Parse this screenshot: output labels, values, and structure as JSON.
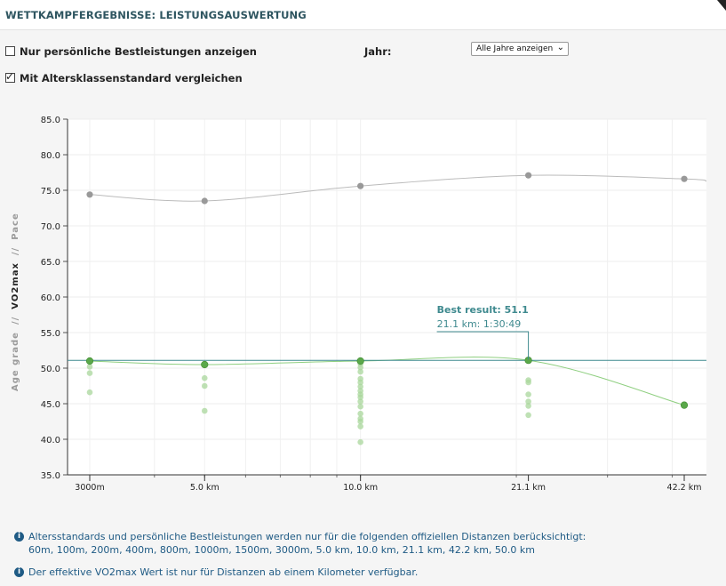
{
  "header": {
    "title": "WETTKAMPFERGEBNISSE: LEISTUNGSAUSWERTUNG"
  },
  "options": {
    "personal_best_label": "Nur persönliche Bestleistungen anzeigen",
    "personal_best_checked": false,
    "age_standard_label": "Mit Altersklassenstandard vergleichen",
    "age_standard_checked": true,
    "year_label": "Jahr:",
    "year_value": "Alle Jahre anzeigen"
  },
  "info": {
    "line1": "Altersstandards und persönliche Bestleistungen werden nur für die folgenden offiziellen Distanzen berücksichtigt:",
    "line2": "60m, 100m, 200m, 400m, 800m, 1000m, 1500m, 3000m, 5.0 km, 10.0 km, 21.1 km, 42.2 km, 50.0 km",
    "line3": "Der effektive VO2max Wert ist nur für Distanzen ab einem Kilometer verfügbar."
  },
  "chart_data": {
    "type": "scatter",
    "x_scale": "log",
    "x_unit": "km",
    "ylim": [
      35,
      85
    ],
    "y_ticks": [
      "35.0",
      "40.0",
      "45.0",
      "50.0",
      "55.0",
      "60.0",
      "65.0",
      "70.0",
      "75.0",
      "80.0",
      "85.0"
    ],
    "x_ticks": [
      {
        "label": "3000m",
        "km": 3.0
      },
      {
        "label": "5.0 km",
        "km": 5.0
      },
      {
        "label": "10.0 km",
        "km": 10.0
      },
      {
        "label": "21.1 km",
        "km": 21.1
      },
      {
        "label": "42.2 km",
        "km": 42.2
      }
    ],
    "y_axis_label": {
      "part1": "Age grade",
      "sep1": "//",
      "part2": "VO2max",
      "sep2": "//",
      "part3": "Pace"
    },
    "grid": true,
    "colors": {
      "standard": "#999999",
      "best": "#5aa84a",
      "results": "#a9d79c",
      "best_line": "#3f8a8f"
    },
    "series": [
      {
        "name": "",
        "kind": "age-standard",
        "points": [
          {
            "x": 3.0,
            "y": 74.4
          },
          {
            "x": 5.0,
            "y": 73.5
          },
          {
            "x": 10.0,
            "y": 75.6
          },
          {
            "x": 21.1,
            "y": 77.1
          },
          {
            "x": 42.2,
            "y": 76.6
          }
        ]
      },
      {
        "name": "",
        "kind": "personal-best",
        "points": [
          {
            "x": 3.0,
            "y": 51.0
          },
          {
            "x": 5.0,
            "y": 50.5
          },
          {
            "x": 10.0,
            "y": 51.0
          },
          {
            "x": 21.1,
            "y": 51.1
          },
          {
            "x": 42.2,
            "y": 44.8
          }
        ]
      },
      {
        "name": "",
        "kind": "all-results",
        "points": [
          {
            "x": 3.0,
            "y": 50.2
          },
          {
            "x": 3.0,
            "y": 49.3
          },
          {
            "x": 3.0,
            "y": 46.6
          },
          {
            "x": 5.0,
            "y": 48.6
          },
          {
            "x": 5.0,
            "y": 47.5
          },
          {
            "x": 5.0,
            "y": 44.0
          },
          {
            "x": 10.0,
            "y": 50.6
          },
          {
            "x": 10.0,
            "y": 50.1
          },
          {
            "x": 10.0,
            "y": 49.5
          },
          {
            "x": 10.0,
            "y": 48.5
          },
          {
            "x": 10.0,
            "y": 48.0
          },
          {
            "x": 10.0,
            "y": 47.4
          },
          {
            "x": 10.0,
            "y": 46.8
          },
          {
            "x": 10.0,
            "y": 46.3
          },
          {
            "x": 10.0,
            "y": 45.9
          },
          {
            "x": 10.0,
            "y": 45.3
          },
          {
            "x": 10.0,
            "y": 44.6
          },
          {
            "x": 10.0,
            "y": 43.6
          },
          {
            "x": 10.0,
            "y": 42.9
          },
          {
            "x": 10.0,
            "y": 42.5
          },
          {
            "x": 10.0,
            "y": 41.8
          },
          {
            "x": 10.0,
            "y": 39.6
          },
          {
            "x": 21.1,
            "y": 48.3
          },
          {
            "x": 21.1,
            "y": 48.0
          },
          {
            "x": 21.1,
            "y": 46.3
          },
          {
            "x": 21.1,
            "y": 45.3
          },
          {
            "x": 21.1,
            "y": 44.7
          },
          {
            "x": 21.1,
            "y": 43.4
          }
        ]
      }
    ],
    "best_result": {
      "value": 51.1,
      "title": "Best result: 51.1",
      "detail": "21.1 km: 1:30:49",
      "x": 21.1
    }
  }
}
